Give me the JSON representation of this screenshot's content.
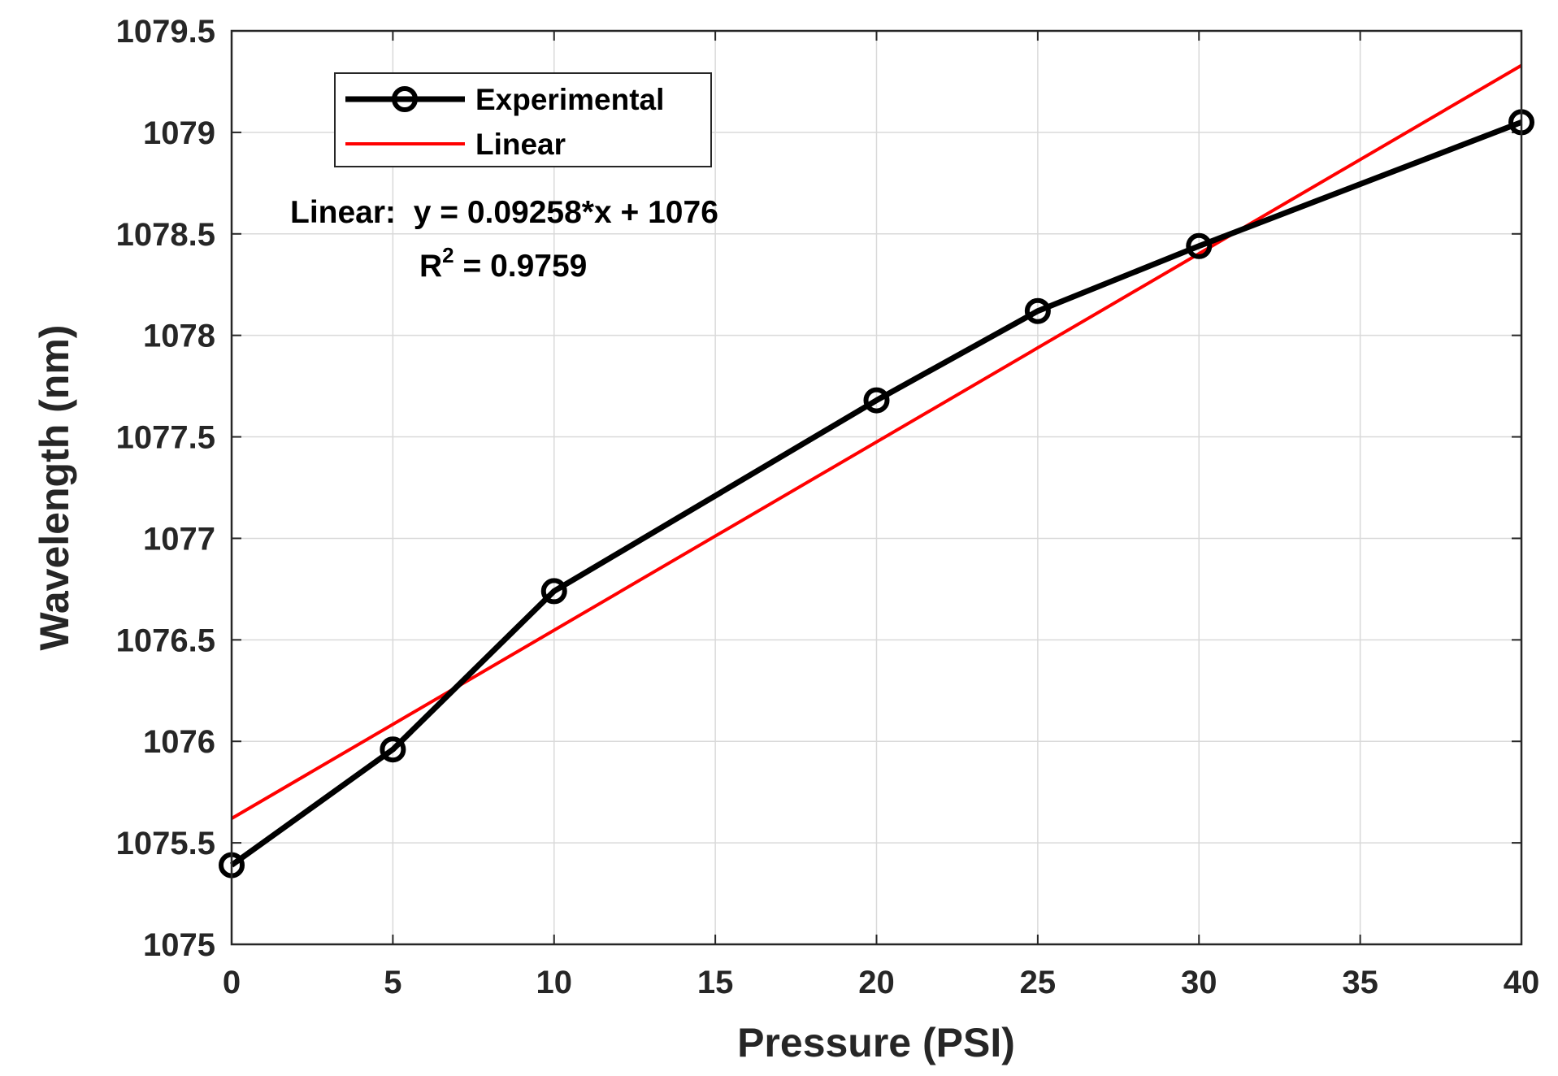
{
  "chart_data": {
    "type": "line",
    "title": "",
    "xlabel": "Pressure (PSI)",
    "ylabel": "Wavelength (nm)",
    "xlim": [
      0,
      40
    ],
    "ylim": [
      1075,
      1079.5
    ],
    "xticks": [
      0,
      5,
      10,
      15,
      20,
      25,
      30,
      35,
      40
    ],
    "xtick_labels": [
      "0",
      "5",
      "10",
      "15",
      "20",
      "25",
      "30",
      "35",
      "40"
    ],
    "yticks": [
      1075,
      1075.5,
      1076,
      1076.5,
      1077,
      1077.5,
      1078,
      1078.5,
      1079,
      1079.5
    ],
    "ytick_labels": [
      "1075",
      "1075.5",
      "1076",
      "1076.5",
      "1077",
      "1077.5",
      "1078",
      "1078.5",
      "1079",
      "1079.5"
    ],
    "grid": true,
    "legend_position": "top-left",
    "series": [
      {
        "name": "Experimental",
        "style": "line-with-circle-markers",
        "color": "#000000",
        "x": [
          0,
          5,
          10,
          20,
          25,
          30,
          40
        ],
        "y": [
          1075.39,
          1075.96,
          1076.74,
          1077.68,
          1078.12,
          1078.44,
          1079.05
        ]
      },
      {
        "name": "Linear",
        "style": "line",
        "color": "#ff0000",
        "x": [
          0,
          40
        ],
        "y": [
          1075.62,
          1079.33
        ]
      }
    ],
    "annotation": {
      "line1": "Linear:  y = 0.09258*x + 1076",
      "r2_prefix": "R",
      "r2_sup": "2",
      "r2_value": " = 0.9759"
    }
  }
}
